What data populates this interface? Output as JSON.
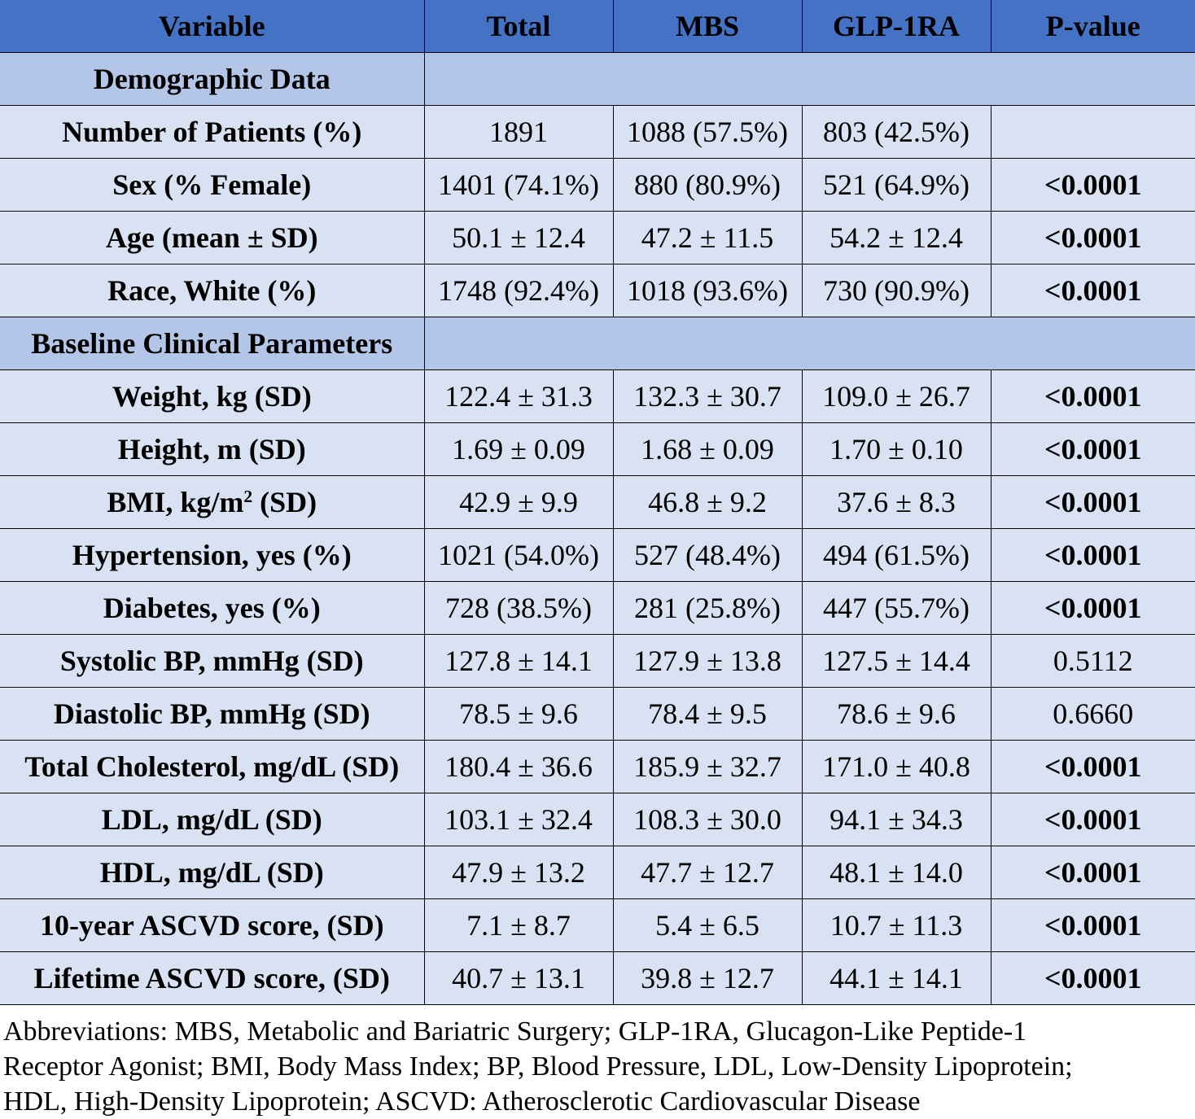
{
  "header": [
    "Variable",
    "Total",
    "MBS",
    "GLP-1RA",
    "P-value"
  ],
  "sections": [
    {
      "title": "Demographic Data",
      "rows": [
        {
          "variable": "Number of Patients (%)",
          "total": "1891",
          "mbs": "1088 (57.5%)",
          "glp": "803 (42.5%)",
          "p": "",
          "sig": false
        },
        {
          "variable": "Sex (% Female)",
          "total": "1401 (74.1%)",
          "mbs": "880 (80.9%)",
          "glp": "521 (64.9%)",
          "p": "<0.0001",
          "sig": true
        },
        {
          "variable": "Age (mean ± SD)",
          "total": "50.1 ± 12.4",
          "mbs": "47.2 ± 11.5",
          "glp": "54.2 ± 12.4",
          "p": "<0.0001",
          "sig": true
        },
        {
          "variable": "Race, White (%)",
          "total": "1748 (92.4%)",
          "mbs": "1018 (93.6%)",
          "glp": "730 (90.9%)",
          "p": "<0.0001",
          "sig": true
        }
      ]
    },
    {
      "title": "Baseline Clinical Parameters",
      "rows": [
        {
          "variable": "Weight, kg (SD)",
          "total": "122.4 ± 31.3",
          "mbs": "132.3 ± 30.7",
          "glp": "109.0 ± 26.7",
          "p": "<0.0001",
          "sig": true
        },
        {
          "variable": "Height, m (SD)",
          "total": "1.69 ± 0.09",
          "mbs": "1.68 ± 0.09",
          "glp": "1.70 ± 0.10",
          "p": "<0.0001",
          "sig": true
        },
        {
          "variable": "BMI, kg/m",
          "variable_sup": "2",
          "variable_after": " (SD)",
          "total": "42.9 ± 9.9",
          "mbs": "46.8 ± 9.2",
          "glp": "37.6 ± 8.3",
          "p": "<0.0001",
          "sig": true
        },
        {
          "variable": "Hypertension, yes (%)",
          "total": "1021 (54.0%)",
          "mbs": "527 (48.4%)",
          "glp": "494 (61.5%)",
          "p": "<0.0001",
          "sig": true
        },
        {
          "variable": "Diabetes, yes (%)",
          "total": "728 (38.5%)",
          "mbs": "281 (25.8%)",
          "glp": "447 (55.7%)",
          "p": "<0.0001",
          "sig": true
        },
        {
          "variable": "Systolic BP, mmHg (SD)",
          "total": "127.8 ± 14.1",
          "mbs": "127.9 ± 13.8",
          "glp": "127.5 ± 14.4",
          "p": "0.5112",
          "sig": false
        },
        {
          "variable": "Diastolic BP, mmHg (SD)",
          "total": "78.5 ± 9.6",
          "mbs": "78.4 ± 9.5",
          "glp": "78.6 ± 9.6",
          "p": "0.6660",
          "sig": false
        },
        {
          "variable": "Total Cholesterol, mg/dL (SD)",
          "total": "180.4 ± 36.6",
          "mbs": "185.9 ± 32.7",
          "glp": "171.0 ± 40.8",
          "p": "<0.0001",
          "sig": true
        },
        {
          "variable": "LDL, mg/dL (SD)",
          "total": "103.1 ± 32.4",
          "mbs": "108.3 ± 30.0",
          "glp": "94.1 ± 34.3",
          "p": "<0.0001",
          "sig": true
        },
        {
          "variable": "HDL, mg/dL (SD)",
          "total": "47.9 ± 13.2",
          "mbs": "47.7 ± 12.7",
          "glp": "48.1 ± 14.0",
          "p": "<0.0001",
          "sig": true
        },
        {
          "variable": "10-year ASCVD score, (SD)",
          "total": "7.1 ± 8.7",
          "mbs": "5.4 ± 6.5",
          "glp": "10.7 ± 11.3",
          "p": "<0.0001",
          "sig": true
        },
        {
          "variable": "Lifetime ASCVD score, (SD)",
          "total": "40.7 ± 13.1",
          "mbs": "39.8 ± 12.7",
          "glp": "44.1 ± 14.1",
          "p": "<0.0001",
          "sig": true
        }
      ]
    }
  ],
  "footnote_lines": [
    "Abbreviations: MBS, Metabolic and Bariatric Surgery; GLP-1RA, Glucagon-Like Peptide-1",
    "Receptor Agonist; BMI, Body Mass Index; BP, Blood Pressure, LDL, Low-Density Lipoprotein;",
    "HDL, High-Density Lipoprotein; ASCVD: Atherosclerotic Cardiovascular Disease"
  ]
}
